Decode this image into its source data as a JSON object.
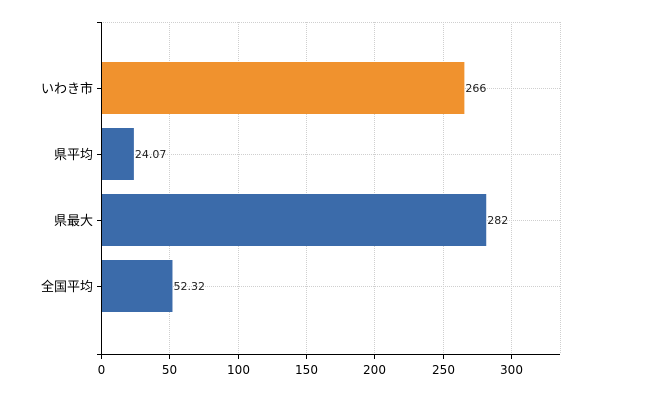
{
  "chart_data": {
    "type": "bar",
    "orientation": "horizontal",
    "categories": [
      "いわき市",
      "県平均",
      "県最大",
      "全国平均"
    ],
    "values": [
      266,
      24.07,
      282,
      52.32
    ],
    "data_labels": [
      "266",
      "24.07",
      "282",
      "52.32"
    ],
    "bar_colors": [
      "#F0922E",
      "#3B6BAA",
      "#3B6BAA",
      "#3B6BAA"
    ],
    "xlim": [
      0,
      336
    ],
    "x_ticks": [
      0,
      50,
      100,
      150,
      200,
      250,
      300
    ],
    "x_tick_labels": [
      "0",
      "50",
      "100",
      "150",
      "200",
      "250",
      "300"
    ],
    "grid": true,
    "legend": "none"
  }
}
